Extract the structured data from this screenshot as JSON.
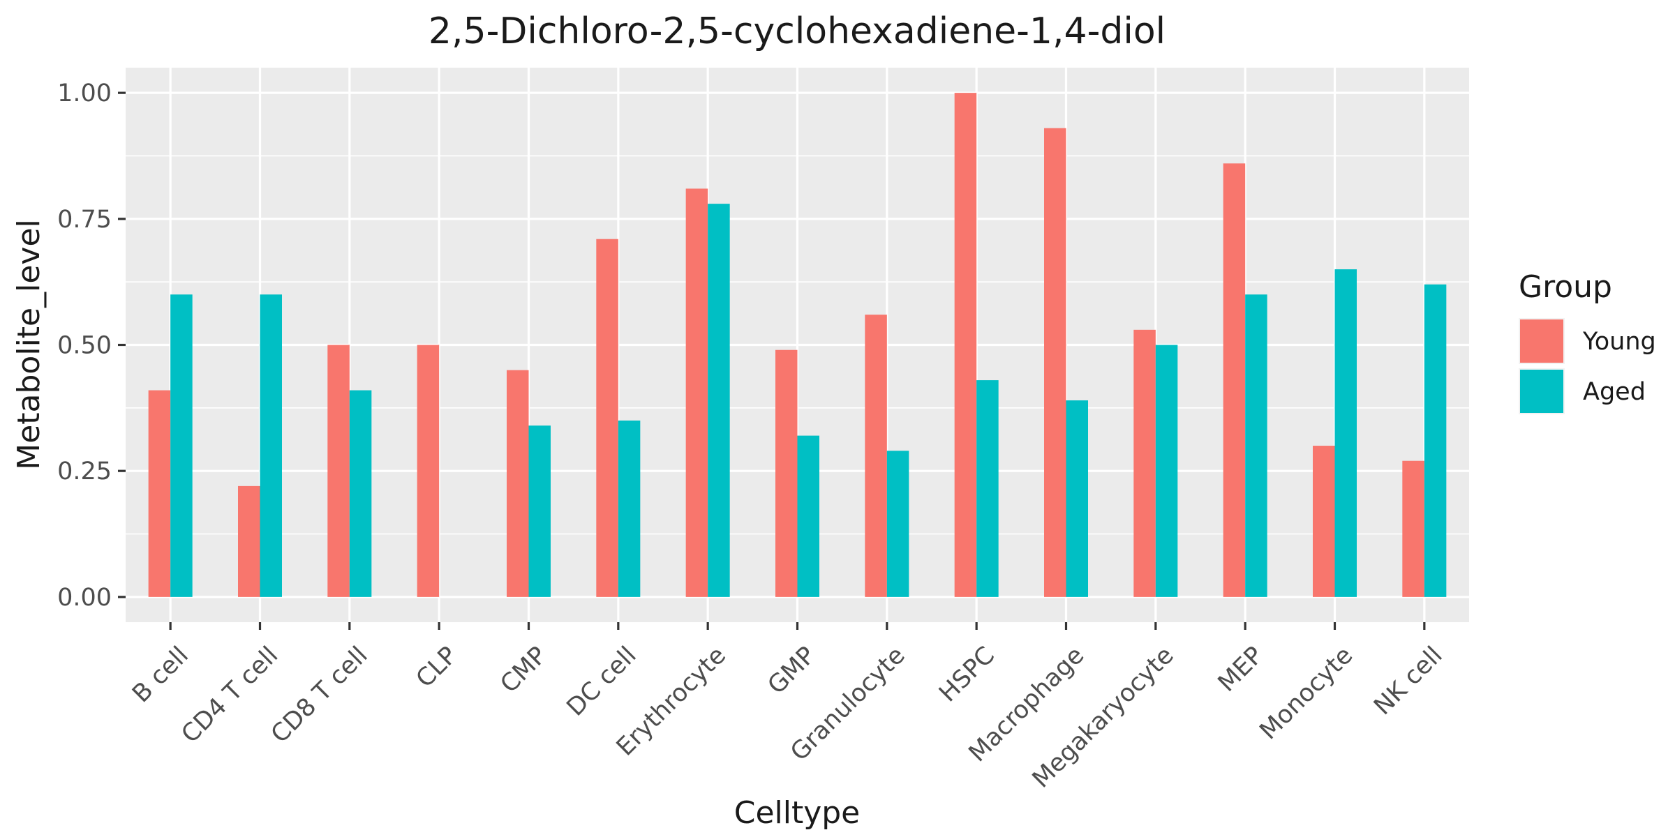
{
  "chart_data": {
    "type": "bar",
    "title": "2,5-Dichloro-2,5-cyclohexadiene-1,4-diol",
    "xlabel": "Celltype",
    "ylabel": "Metabolite_level",
    "categories": [
      "B cell",
      "CD4 T cell",
      "CD8 T cell",
      "CLP",
      "CMP",
      "DC cell",
      "Erythrocyte",
      "GMP",
      "Granulocyte",
      "HSPC",
      "Macrophage",
      "Megakaryocyte",
      "MEP",
      "Monocyte",
      "NK cell"
    ],
    "series": [
      {
        "name": "Young",
        "color": "#F8766D",
        "values": [
          0.41,
          0.22,
          0.5,
          0.5,
          0.45,
          0.71,
          0.81,
          0.49,
          0.56,
          1.0,
          0.93,
          0.53,
          0.86,
          0.3,
          0.27
        ]
      },
      {
        "name": "Aged",
        "color": "#00BFC4",
        "values": [
          0.6,
          0.6,
          0.41,
          null,
          0.34,
          0.35,
          0.78,
          0.32,
          0.29,
          0.43,
          0.39,
          0.5,
          0.6,
          0.65,
          0.62
        ]
      }
    ],
    "ylim": [
      -0.05,
      1.05
    ],
    "yticks": [
      0.0,
      0.25,
      0.5,
      0.75,
      1.0
    ],
    "ytick_labels": [
      "0.00",
      "0.25",
      "0.50",
      "0.75",
      "1.00"
    ],
    "grid": true,
    "legend": {
      "title": "Group",
      "position": "right"
    },
    "panel_background": "#EBEBEB",
    "grid_color": "#FFFFFF"
  }
}
